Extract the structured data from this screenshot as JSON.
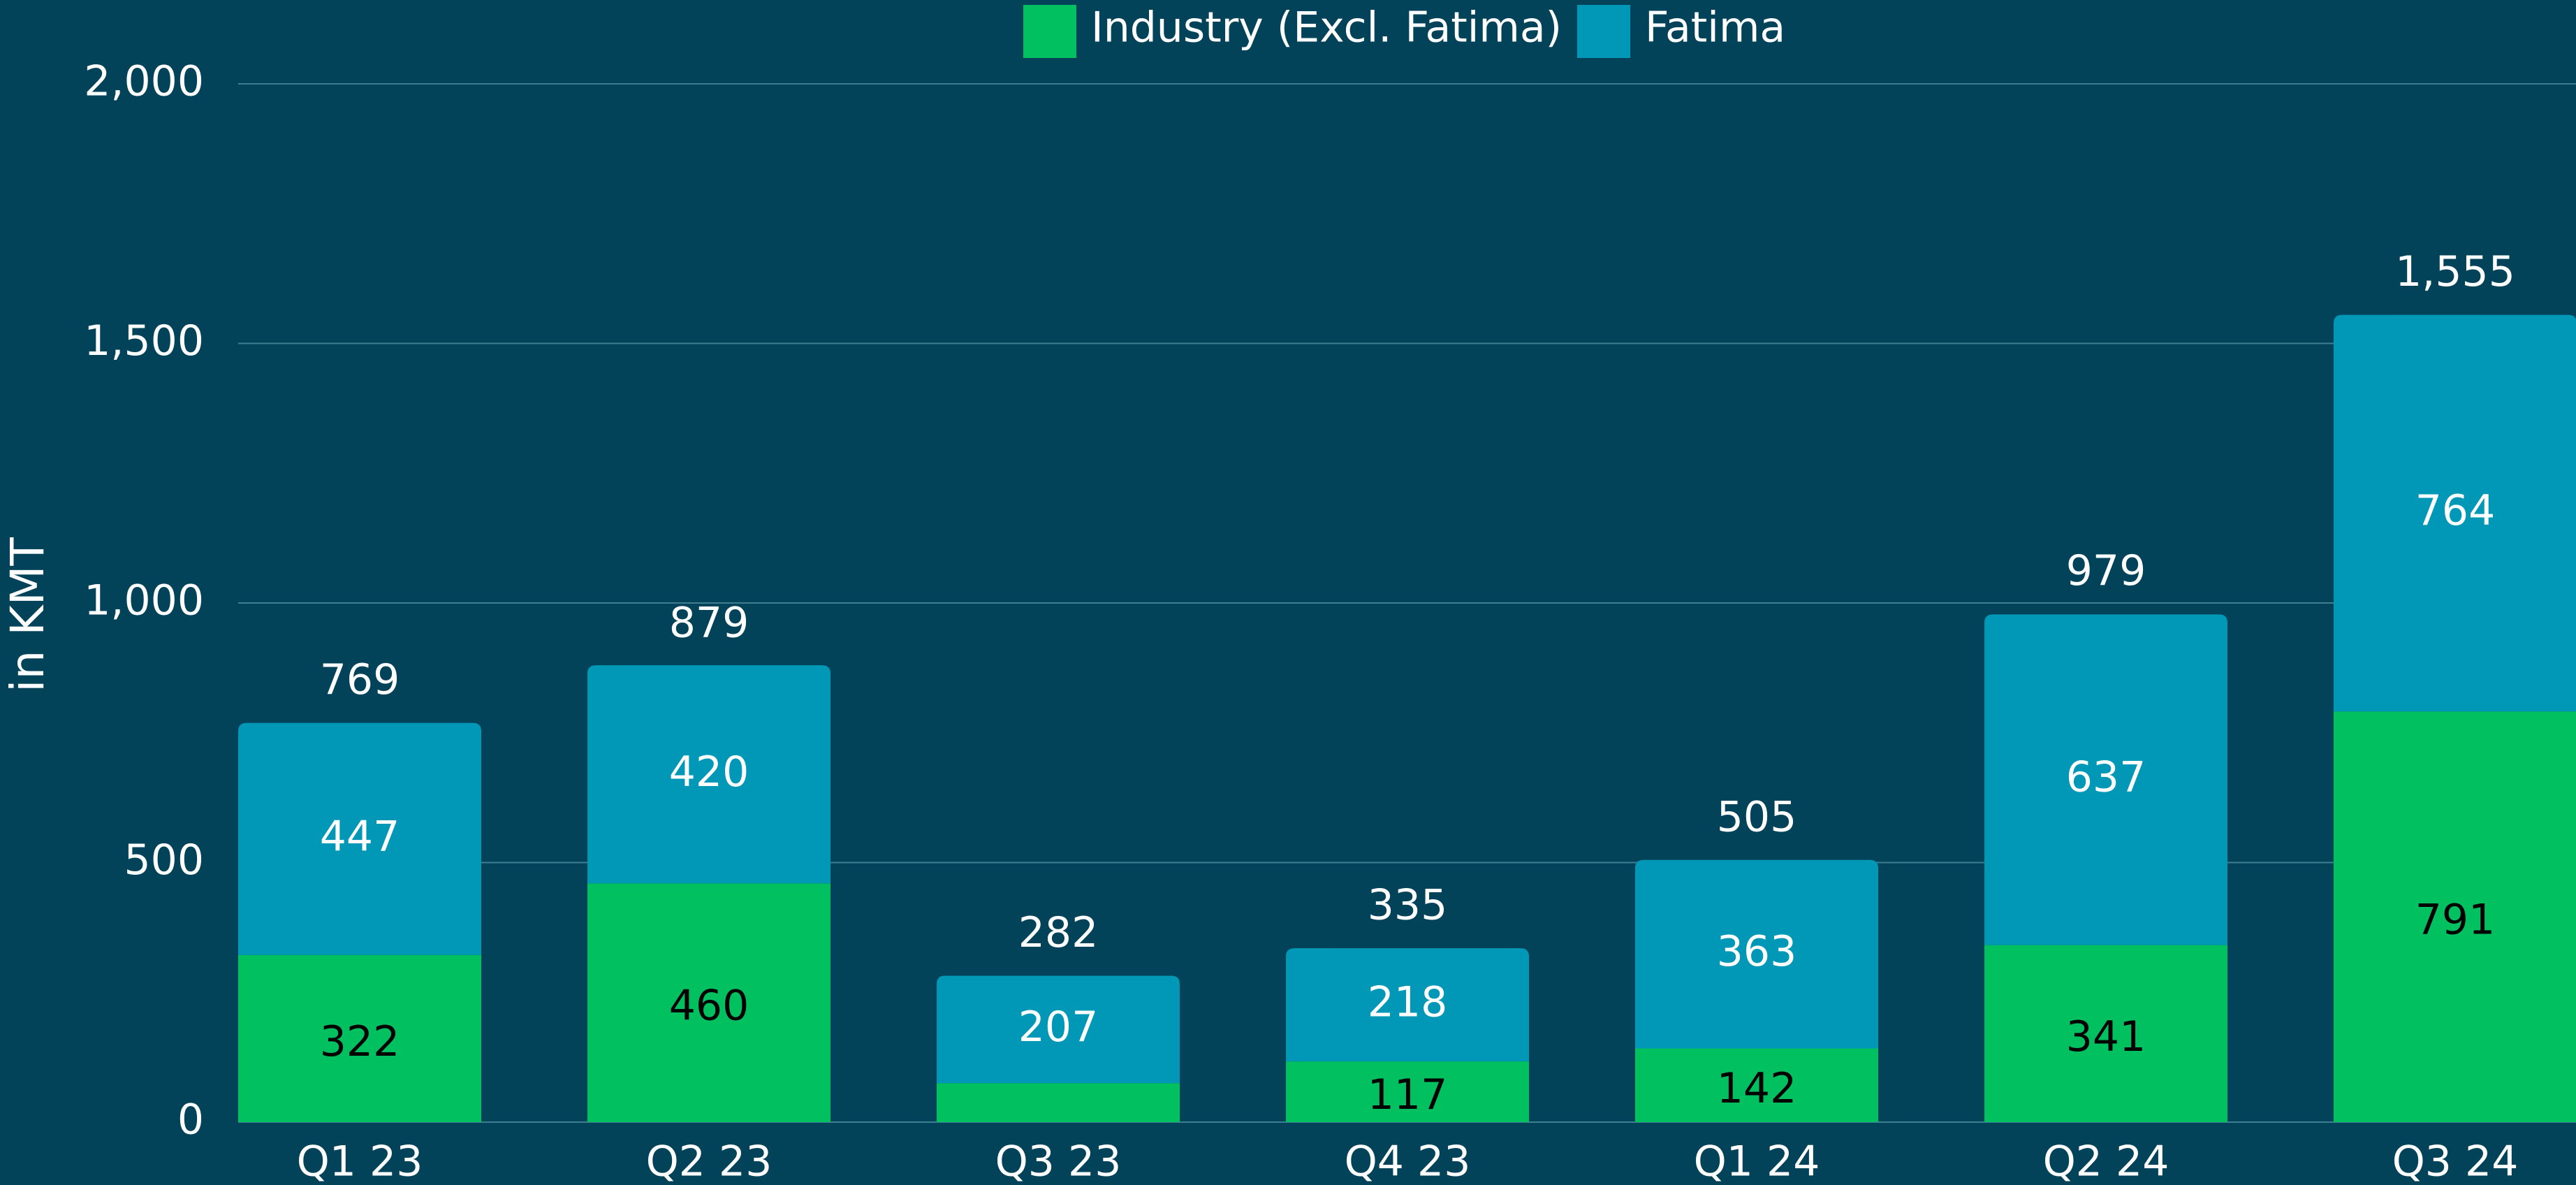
{
  "chart_data": {
    "type": "stacked_bar",
    "y_axis_label": "in KMT",
    "categories": [
      "Q1 23",
      "Q2 23",
      "Q3 23",
      "Q4 23",
      "Q1 24",
      "Q2 24",
      "Q3 24"
    ],
    "series": [
      {
        "name": "Industry (Excl. Fatima)",
        "color": "#00c060",
        "label_color": "#000000",
        "values": [
          322,
          460,
          75,
          117,
          142,
          341,
          791
        ],
        "value_labels": [
          "322",
          "460",
          null,
          "117",
          "142",
          "341",
          "791"
        ]
      },
      {
        "name": "Fatima",
        "color": "#0098b6",
        "label_color": "#ffffff",
        "values": [
          447,
          420,
          207,
          218,
          363,
          637,
          764
        ]
      }
    ],
    "totals": [
      769,
      879,
      282,
      335,
      505,
      979,
      1555
    ],
    "total_labels": [
      "769",
      "879",
      "282",
      "335",
      "505",
      "979",
      "1,555"
    ],
    "ylim": [
      0,
      2000
    ],
    "yticks": [
      0,
      {
        "value": 500,
        "label": "500"
      },
      {
        "value": 1000,
        "label": "1,000"
      },
      {
        "value": 1500,
        "label": "1,500"
      },
      {
        "value": 2000,
        "label": "2,000"
      }
    ],
    "grid": true,
    "legend": "top"
  }
}
